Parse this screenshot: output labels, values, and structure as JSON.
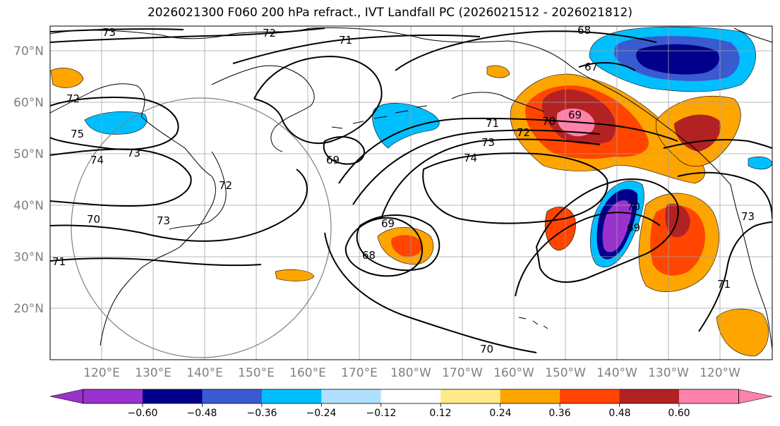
{
  "title": "2026021300 F060 200 hPa refract., IVT Landfall PC (2026021512 - 2026021812)",
  "lat_labels": [
    "70°N",
    "60°N",
    "50°N",
    "40°N",
    "30°N",
    "20°N"
  ],
  "lon_labels": [
    "120°E",
    "130°E",
    "140°E",
    "150°E",
    "160°E",
    "170°E",
    "180°W",
    "170°W",
    "160°W",
    "150°W",
    "140°W",
    "130°W",
    "120°W"
  ],
  "colorbar": {
    "ticks": [
      "−0.60",
      "−0.48",
      "−0.36",
      "−0.24",
      "−0.12",
      "0.12",
      "0.24",
      "0.36",
      "0.48",
      "0.60"
    ],
    "colors": [
      "#9932cc",
      "#00008b",
      "#3a5bd0",
      "#00bfff",
      "#b0e0ff",
      "#ffffff",
      "#ffeb8a",
      "#ffa500",
      "#ff4500",
      "#b22222",
      "#ff82ab"
    ]
  },
  "contour_labels": [
    "73",
    "72",
    "71",
    "68",
    "67",
    "72",
    "75",
    "74",
    "73",
    "72",
    "69",
    "70",
    "71",
    "72",
    "73",
    "74",
    "69",
    "68",
    "70",
    "70",
    "69",
    "73",
    "71",
    "71",
    "69",
    "70",
    "73"
  ]
}
